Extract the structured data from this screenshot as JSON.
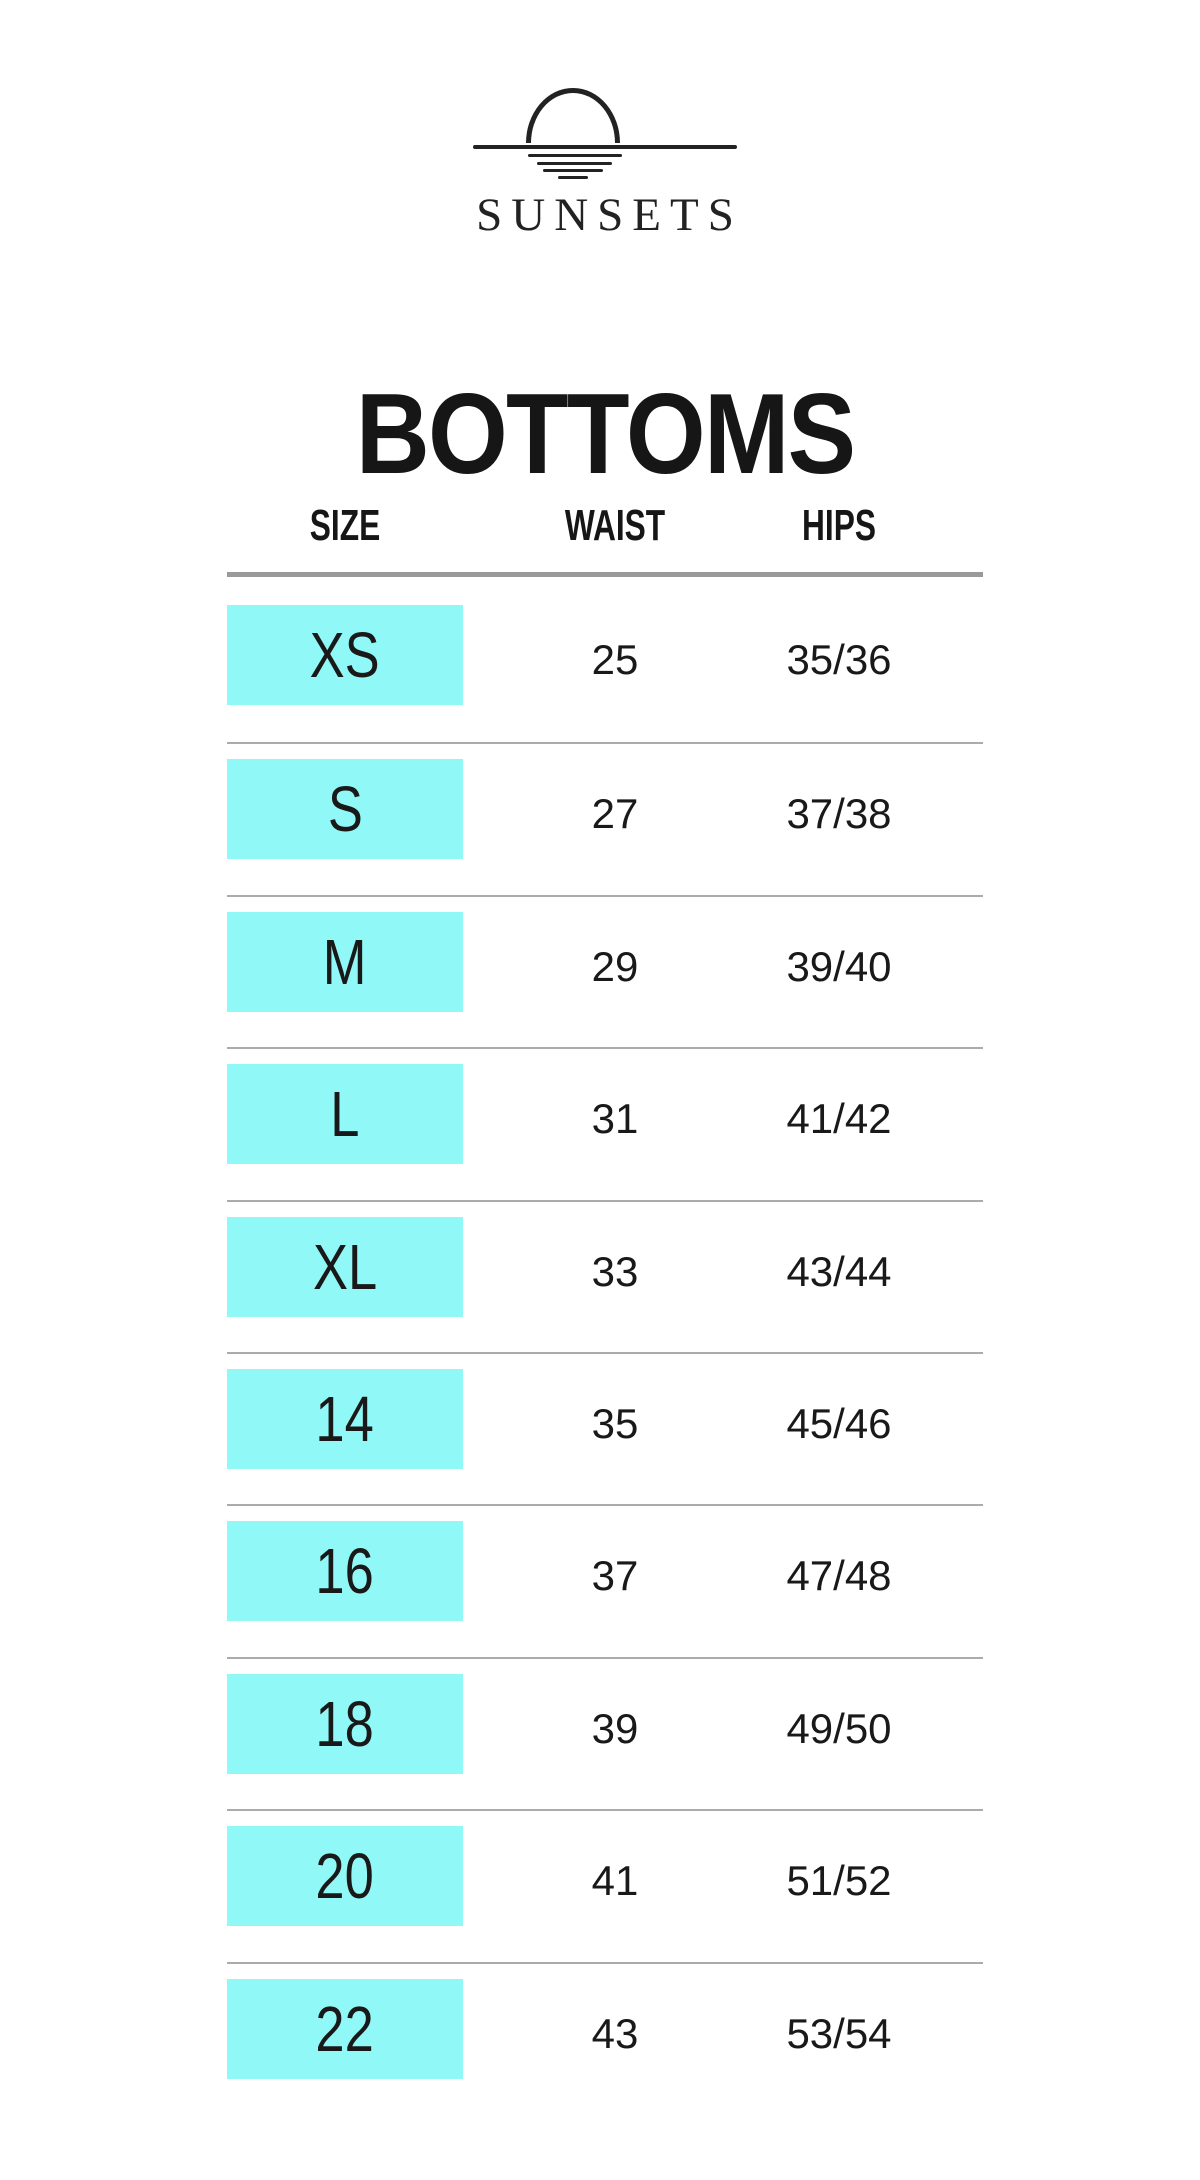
{
  "logo": {
    "brand": "SUNSETS",
    "icon": "sunset-over-water"
  },
  "title": "BOTTOMS",
  "table": {
    "columns": [
      "SIZE",
      "WAIST",
      "HIPS"
    ],
    "rows": [
      {
        "size": "XS",
        "waist": "25",
        "hips": "35/36"
      },
      {
        "size": "S",
        "waist": "27",
        "hips": "37/38"
      },
      {
        "size": "M",
        "waist": "29",
        "hips": "39/40"
      },
      {
        "size": "L",
        "waist": "31",
        "hips": "41/42"
      },
      {
        "size": "XL",
        "waist": "33",
        "hips": "43/44"
      },
      {
        "size": "14",
        "waist": "35",
        "hips": "45/46"
      },
      {
        "size": "16",
        "waist": "37",
        "hips": "47/48"
      },
      {
        "size": "18",
        "waist": "39",
        "hips": "49/50"
      },
      {
        "size": "20",
        "waist": "41",
        "hips": "51/52"
      },
      {
        "size": "22",
        "waist": "43",
        "hips": "53/54"
      }
    ]
  },
  "colors": {
    "highlight": "#90F8F6",
    "ink": "#222222",
    "text": "#1E1E1E",
    "rule": "#9A9A9A",
    "separator": "#ABABAB"
  }
}
